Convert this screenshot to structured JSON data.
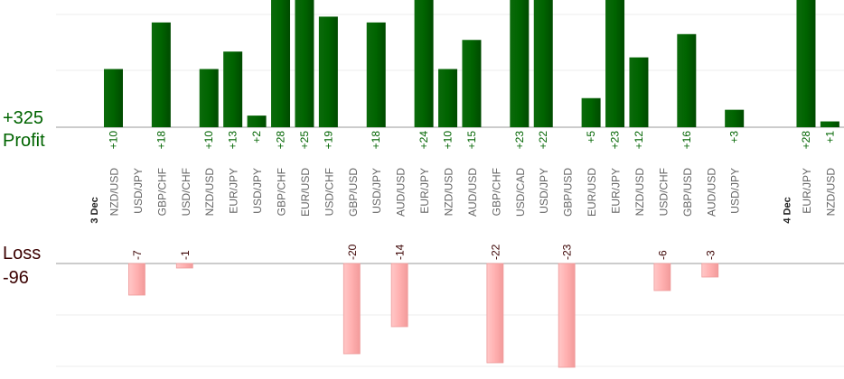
{
  "summary": {
    "profit_total": "+325",
    "profit_label": "Profit",
    "loss_label": "Loss",
    "loss_total": "-96"
  },
  "chart_data": {
    "type": "bar",
    "day_labels": [
      {
        "label": "3 Dec",
        "before_index": 0
      },
      {
        "label": "4 Dec",
        "before_index": 31
      }
    ],
    "categories": [
      "NZD/USD",
      "USD/JPY",
      "GBP/CHF",
      "USD/CHF",
      "NZD/USD",
      "EUR/JPY",
      "USD/JPY",
      "GBP/CHF",
      "EUR/USD",
      "USD/CHF",
      "GBP/USD",
      "USD/JPY",
      "AUD/USD",
      "EUR/JPY",
      "NZD/USD",
      "AUD/USD",
      "GBP/CHF",
      "USD/CAD",
      "USD/JPY",
      "GBP/USD",
      "EUR/USD",
      "EUR/JPY",
      "NZD/USD",
      "USD/CHF",
      "GBP/USD",
      "AUD/USD",
      "USD/JPY",
      "EUR/JPY",
      "NZD/USD"
    ],
    "series": [
      {
        "values": [
          10,
          0,
          18,
          0,
          10,
          13,
          2,
          28,
          25,
          19,
          0,
          18,
          0,
          24,
          10,
          15,
          0,
          23,
          22,
          0,
          5,
          23,
          12,
          0,
          16,
          0,
          3,
          28,
          1
        ],
        "color": "#006400"
      },
      {
        "values": [
          0,
          -7,
          0,
          -1,
          0,
          0,
          0,
          0,
          0,
          0,
          -20,
          0,
          -14,
          0,
          0,
          0,
          -22,
          0,
          0,
          -23,
          0,
          0,
          0,
          -6,
          0,
          -3,
          0,
          0,
          0
        ],
        "color": "#ffb0b0"
      }
    ],
    "profit_label_color": "#006400",
    "loss_label_color": "#3a0000",
    "grid": true
  }
}
